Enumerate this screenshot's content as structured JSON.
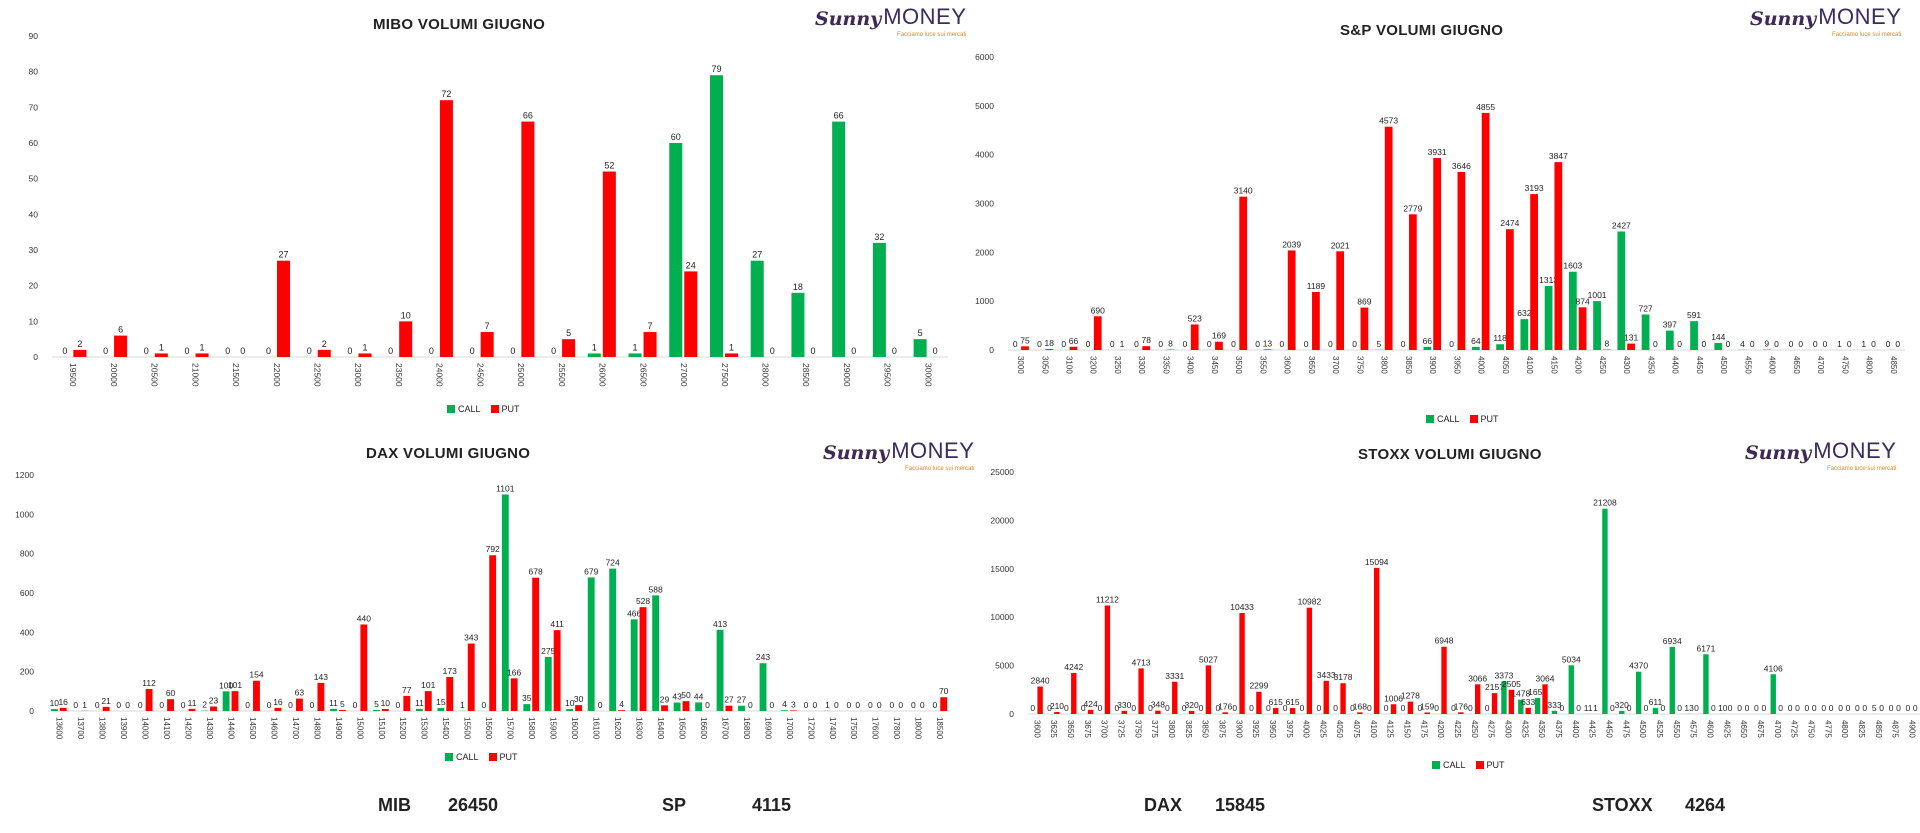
{
  "colors": {
    "call": "#00b050",
    "put": "#ff0000"
  },
  "logo": {
    "sunny": "Sunny",
    "money": "MONEY",
    "tagline": "Facciamo luce sui mercati"
  },
  "legend": {
    "call": "CALL",
    "put": "PUT"
  },
  "footer": {
    "mib_label": "MIB",
    "mib_value": "26450",
    "sp_label": "SP",
    "sp_value": "4115",
    "dax_label": "DAX",
    "dax_value": "15845",
    "stoxx_label": "STOXX",
    "stoxx_value": "4264"
  },
  "chart_data": [
    {
      "id": "mibo",
      "type": "bar",
      "title": "MIBO VOLUMI GIUGNO",
      "ylim": [
        0,
        90
      ],
      "yticks": [
        0,
        10,
        20,
        30,
        40,
        50,
        60,
        70,
        80,
        90
      ],
      "categories": [
        "19500",
        "20000",
        "20500",
        "21000",
        "21500",
        "22000",
        "22500",
        "23000",
        "23500",
        "24000",
        "24500",
        "25000",
        "25500",
        "26000",
        "26500",
        "27000",
        "27500",
        "28000",
        "28500",
        "29000",
        "29500",
        "30000"
      ],
      "series": [
        {
          "name": "CALL",
          "values": [
            0,
            0,
            0,
            0,
            0,
            0,
            0,
            0,
            0,
            0,
            0,
            0,
            0,
            1,
            1,
            60,
            79,
            27,
            18,
            66,
            32,
            5
          ]
        },
        {
          "name": "PUT",
          "values": [
            2,
            6,
            1,
            1,
            0,
            27,
            2,
            1,
            10,
            72,
            7,
            66,
            5,
            52,
            7,
            24,
            1,
            0,
            0,
            0,
            0,
            0
          ]
        }
      ],
      "legend_position": "bottom",
      "grid": false
    },
    {
      "id": "sp",
      "type": "bar",
      "title": "S&P VOLUMI GIUGNO",
      "ylim": [
        0,
        6000
      ],
      "yticks": [
        0,
        1000,
        2000,
        3000,
        4000,
        5000,
        6000
      ],
      "categories": [
        "3000",
        "3050",
        "3100",
        "3200",
        "3250",
        "3300",
        "3350",
        "3400",
        "3450",
        "3500",
        "3550",
        "3600",
        "3650",
        "3700",
        "3750",
        "3800",
        "3850",
        "3900",
        "3950",
        "4000",
        "4050",
        "4100",
        "4150",
        "4200",
        "4250",
        "4300",
        "4350",
        "4400",
        "4450",
        "4500",
        "4550",
        "4600",
        "4650",
        "4700",
        "4750",
        "4800",
        "4850"
      ],
      "series": [
        {
          "name": "CALL",
          "values": [
            0,
            0,
            0,
            0,
            0,
            0,
            0,
            0,
            0,
            0,
            0,
            0,
            0,
            0,
            0,
            5,
            0,
            66,
            0,
            64,
            118,
            632,
            1313,
            1603,
            1001,
            2427,
            727,
            397,
            591,
            144,
            4,
            9,
            0,
            0,
            1,
            1,
            0
          ]
        },
        {
          "name": "PUT",
          "values": [
            75,
            18,
            66,
            690,
            1,
            78,
            8,
            523,
            169,
            3140,
            13,
            2039,
            1189,
            2021,
            869,
            4573,
            2779,
            3931,
            3646,
            4855,
            2474,
            3193,
            3847,
            874,
            8,
            131,
            0,
            0,
            0,
            0,
            0,
            0,
            0,
            0,
            0,
            0,
            0
          ]
        }
      ],
      "legend_position": "bottom",
      "grid": false
    },
    {
      "id": "dax",
      "type": "bar",
      "title": "DAX VOLUMI GIUGNO",
      "ylim": [
        0,
        1200
      ],
      "yticks": [
        0,
        200,
        400,
        600,
        800,
        1000,
        1200
      ],
      "categories": [
        "13600",
        "13700",
        "13800",
        "13900",
        "14000",
        "14100",
        "14200",
        "14300",
        "14400",
        "14500",
        "14600",
        "14700",
        "14800",
        "14900",
        "15000",
        "15100",
        "15200",
        "15300",
        "15400",
        "15500",
        "15600",
        "15700",
        "15800",
        "15900",
        "16000",
        "16100",
        "16200",
        "16300",
        "16400",
        "16500",
        "16600",
        "16700",
        "16800",
        "16900",
        "17000",
        "17200",
        "17400",
        "17500",
        "17600",
        "17800",
        "18000",
        "18500"
      ],
      "series": [
        {
          "name": "CALL",
          "values": [
            10,
            0,
            0,
            0,
            0,
            0,
            0,
            2,
            100,
            0,
            0,
            0,
            0,
            11,
            0,
            5,
            0,
            11,
            15,
            1,
            0,
            1101,
            35,
            275,
            10,
            679,
            724,
            466,
            588,
            43,
            44,
            413,
            27,
            243,
            4,
            0,
            1,
            0,
            0,
            0,
            0,
            0
          ]
        },
        {
          "name": "PUT",
          "values": [
            16,
            1,
            21,
            0,
            112,
            60,
            11,
            23,
            101,
            154,
            16,
            63,
            143,
            5,
            440,
            10,
            77,
            101,
            173,
            343,
            792,
            166,
            678,
            411,
            30,
            0,
            4,
            528,
            29,
            50,
            0,
            27,
            0,
            0,
            3,
            0,
            0,
            0,
            0,
            0,
            0,
            70
          ]
        }
      ],
      "legend_position": "bottom",
      "grid": false
    },
    {
      "id": "stoxx",
      "type": "bar",
      "title": "STOXX VOLUMI GIUGNO",
      "ylim": [
        0,
        25000
      ],
      "yticks": [
        0,
        5000,
        10000,
        15000,
        20000,
        25000
      ],
      "categories": [
        "3600",
        "3625",
        "3650",
        "3675",
        "3700",
        "3725",
        "3750",
        "3775",
        "3800",
        "3825",
        "3850",
        "3875",
        "3900",
        "3925",
        "3950",
        "3975",
        "4000",
        "4025",
        "4050",
        "4075",
        "4100",
        "4125",
        "4150",
        "4175",
        "4200",
        "4225",
        "4250",
        "4275",
        "4300",
        "4325",
        "4350",
        "4375",
        "4400",
        "4425",
        "4450",
        "4475",
        "4500",
        "4525",
        "4550",
        "4575",
        "4600",
        "4625",
        "4650",
        "4675",
        "4700",
        "4725",
        "4750",
        "4775",
        "4800",
        "4825",
        "4850",
        "4875",
        "4900"
      ],
      "series": [
        {
          "name": "CALL",
          "values": [
            0,
            0,
            0,
            0,
            0,
            0,
            0,
            0,
            0,
            0,
            0,
            0,
            0,
            0,
            0,
            0,
            0,
            0,
            0,
            0,
            0,
            0,
            0,
            0,
            0,
            0,
            0,
            0,
            3373,
            1478,
            1653,
            333,
            5034,
            11,
            21208,
            320,
            4370,
            611,
            6934,
            13,
            6171,
            10,
            0,
            0,
            4106,
            0,
            0,
            0,
            0,
            0,
            5,
            0,
            0
          ]
        },
        {
          "name": "PUT",
          "values": [
            2840,
            210,
            4242,
            424,
            11212,
            330,
            4713,
            348,
            3331,
            320,
            5027,
            176,
            10433,
            2299,
            615,
            615,
            10982,
            3433,
            3178,
            168,
            15094,
            1006,
            1278,
            159,
            6948,
            176,
            3066,
            2157,
            2505,
            633,
            3064,
            0,
            0,
            1,
            0,
            0,
            0,
            0,
            0,
            0,
            0,
            0,
            0,
            0,
            0,
            0,
            0,
            0,
            0,
            0,
            0,
            0,
            0
          ]
        }
      ],
      "legend_position": "bottom",
      "grid": false
    }
  ]
}
